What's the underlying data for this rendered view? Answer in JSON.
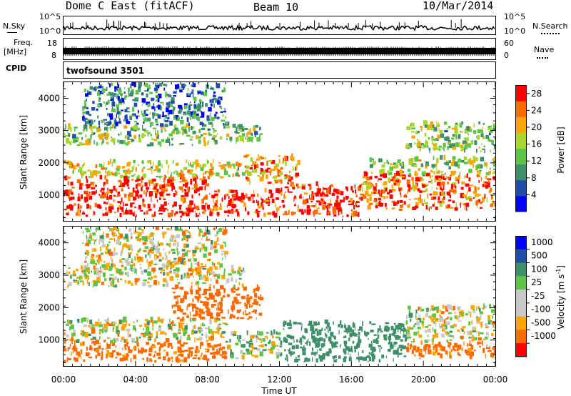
{
  "header": {
    "station": "Dome C East (fitACF)",
    "beam": "Beam 10",
    "date": "10/Mar/2014"
  },
  "strip_nsky": {
    "label": "N.Sky",
    "ticks_left": [
      "10^5",
      "10^0"
    ],
    "right_label": "N.Search",
    "ticks_right": [
      "10^5",
      "10^0"
    ]
  },
  "strip_freq": {
    "label_line1": "Freq.",
    "label_line2": "[MHz]",
    "ticks_left": [
      "18",
      "8"
    ],
    "right_label": "Nave",
    "ticks_right": [
      "60",
      "0"
    ]
  },
  "cpid": {
    "label": "CPID",
    "value": "twofsound 3501"
  },
  "colors": {
    "power_scale": [
      "#0000ff",
      "#1f4ea8",
      "#3f8f6a",
      "#5cc545",
      "#a8d62e",
      "#ffa500",
      "#ff6a00",
      "#ff0000"
    ],
    "velocity_scale": [
      "#ff0000",
      "#ff6a00",
      "#ffa500",
      "#c8c8c8",
      "#c8c8c8",
      "#5cc545",
      "#3f8f6a",
      "#1f4ea8",
      "#0000ff"
    ],
    "ground_scatter": "#c8c8c8"
  },
  "chart_data": [
    {
      "type": "heatmap",
      "name": "power-panel",
      "ylabel": "Slant Range [km]",
      "xlim": [
        "00:00",
        "24:00"
      ],
      "ylim": [
        200,
        4500
      ],
      "y_ticks": [
        1000,
        2000,
        3000,
        4000
      ],
      "colorbar": {
        "label": "Power [dB]",
        "ticks": [
          4,
          8,
          12,
          16,
          20,
          24,
          28
        ],
        "range": [
          0,
          30
        ]
      },
      "bands": [
        {
          "t0": 0,
          "t1": 8,
          "r0": 300,
          "r1": 1500,
          "v": 28
        },
        {
          "t0": 8,
          "t1": 12,
          "r0": 300,
          "r1": 1100,
          "v": 28
        },
        {
          "t0": 12,
          "t1": 16.5,
          "r0": 300,
          "r1": 1300,
          "v": 28
        },
        {
          "t0": 16.5,
          "t1": 24,
          "r0": 500,
          "r1": 1600,
          "v": 24
        },
        {
          "t0": 0,
          "t1": 10,
          "r0": 1500,
          "r1": 2000,
          "v": 18
        },
        {
          "t0": 10,
          "t1": 13,
          "r0": 1300,
          "r1": 2200,
          "v": 22
        },
        {
          "t0": 17,
          "t1": 24,
          "r0": 1600,
          "r1": 2100,
          "v": 16
        },
        {
          "t0": 0,
          "t1": 11,
          "r0": 2500,
          "r1": 3100,
          "v": 14
        },
        {
          "t0": 19,
          "t1": 24,
          "r0": 2300,
          "r1": 3200,
          "v": 14
        },
        {
          "t0": 1,
          "t1": 9,
          "r0": 3100,
          "r1": 4400,
          "v": 8
        }
      ]
    },
    {
      "type": "heatmap",
      "name": "velocity-panel",
      "ylabel": "Slant Range [km]",
      "xlabel": "Time UT",
      "x_ticks": [
        "00:00",
        "04:00",
        "08:00",
        "12:00",
        "16:00",
        "20:00",
        "00:00"
      ],
      "ylim": [
        200,
        4500
      ],
      "y_ticks": [
        1000,
        2000,
        3000,
        4000
      ],
      "colorbar": {
        "label": "Velocity [m s^-1]",
        "ticks": [
          1000,
          500,
          100,
          25,
          -25,
          -100,
          -500,
          -1000
        ],
        "range": [
          -1000,
          1000
        ]
      },
      "bands": [
        {
          "t0": 0,
          "t1": 9,
          "r0": 300,
          "r1": 900,
          "v": -200
        },
        {
          "t0": 0,
          "t1": 9,
          "r0": 900,
          "r1": 1600,
          "v": 0
        },
        {
          "t0": 9,
          "t1": 12,
          "r0": 400,
          "r1": 1200,
          "v": 50
        },
        {
          "t0": 12,
          "t1": 19,
          "r0": 300,
          "r1": 1500,
          "v": 300
        },
        {
          "t0": 19,
          "t1": 24,
          "r0": 400,
          "r1": 900,
          "v": -200
        },
        {
          "t0": 19,
          "t1": 24,
          "r0": 900,
          "r1": 2000,
          "v": 0
        },
        {
          "t0": 6,
          "t1": 11,
          "r0": 1600,
          "r1": 2600,
          "v": -300
        },
        {
          "t0": 0,
          "t1": 10,
          "r0": 2600,
          "r1": 3200,
          "v": 0
        },
        {
          "t0": 1,
          "t1": 9,
          "r0": 3200,
          "r1": 4400,
          "v": 0
        }
      ]
    }
  ]
}
